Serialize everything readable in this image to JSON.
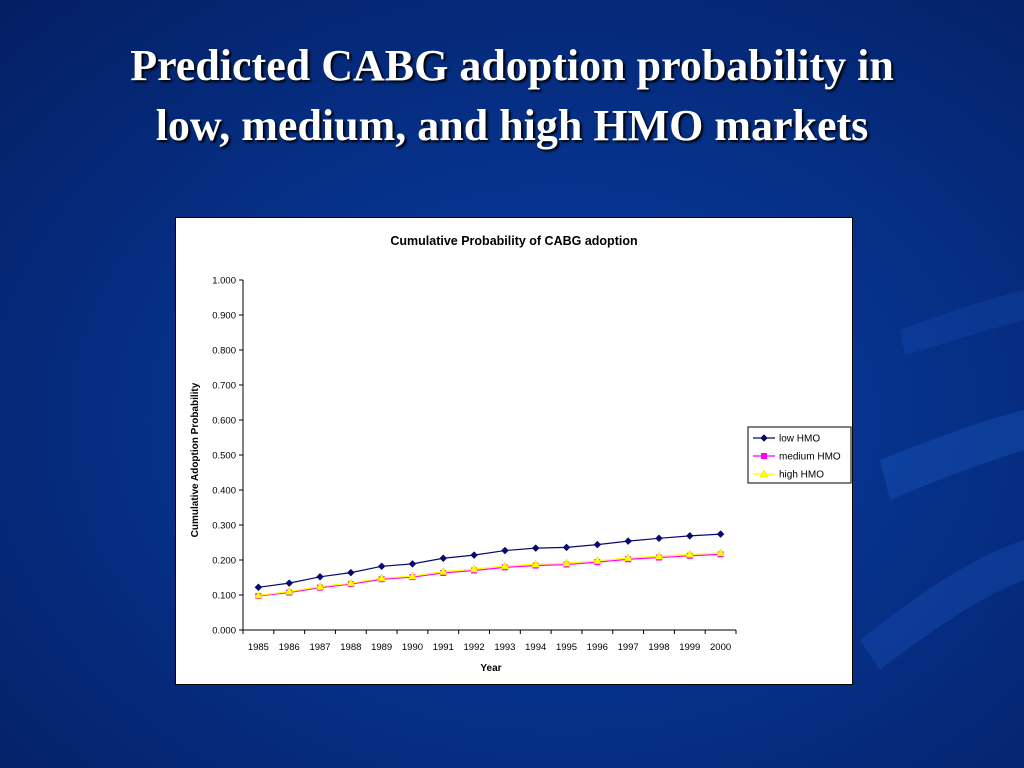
{
  "slide": {
    "title_line1": "Predicted CABG adoption probability in",
    "title_line2": "low, medium, and high HMO markets"
  },
  "colors": {
    "background": "#06318a",
    "low_hmo": "#0a0a6e",
    "medium_hmo": "#ff00ff",
    "high_hmo": "#ffff00"
  },
  "chart_data": {
    "type": "line",
    "title": "Cumulative Probability of CABG adoption",
    "xlabel": "Year",
    "ylabel": "Cumulative Adoption Probability",
    "ylim": [
      0,
      1
    ],
    "yticks": [
      "0.000",
      "0.100",
      "0.200",
      "0.300",
      "0.400",
      "0.500",
      "0.600",
      "0.700",
      "0.800",
      "0.900",
      "1.000"
    ],
    "x": [
      "1985",
      "1986",
      "1987",
      "1988",
      "1989",
      "1990",
      "1991",
      "1992",
      "1993",
      "1994",
      "1995",
      "1996",
      "1997",
      "1998",
      "1999",
      "2000"
    ],
    "grid": false,
    "legend_position": "right",
    "series": [
      {
        "name": "low HMO",
        "marker": "diamond",
        "color": "#0a0a6e",
        "values": [
          0.122,
          0.134,
          0.152,
          0.164,
          0.182,
          0.189,
          0.205,
          0.214,
          0.227,
          0.234,
          0.236,
          0.244,
          0.254,
          0.262,
          0.269,
          0.274
        ]
      },
      {
        "name": "medium HMO",
        "marker": "square",
        "color": "#ff00ff",
        "values": [
          0.097,
          0.107,
          0.121,
          0.131,
          0.145,
          0.151,
          0.163,
          0.17,
          0.179,
          0.184,
          0.187,
          0.194,
          0.202,
          0.207,
          0.212,
          0.216
        ]
      },
      {
        "name": "high HMO",
        "marker": "triangle",
        "color": "#ffff00",
        "values": [
          0.099,
          0.11,
          0.124,
          0.134,
          0.148,
          0.154,
          0.167,
          0.174,
          0.183,
          0.188,
          0.191,
          0.198,
          0.206,
          0.211,
          0.216,
          0.22
        ]
      }
    ]
  }
}
